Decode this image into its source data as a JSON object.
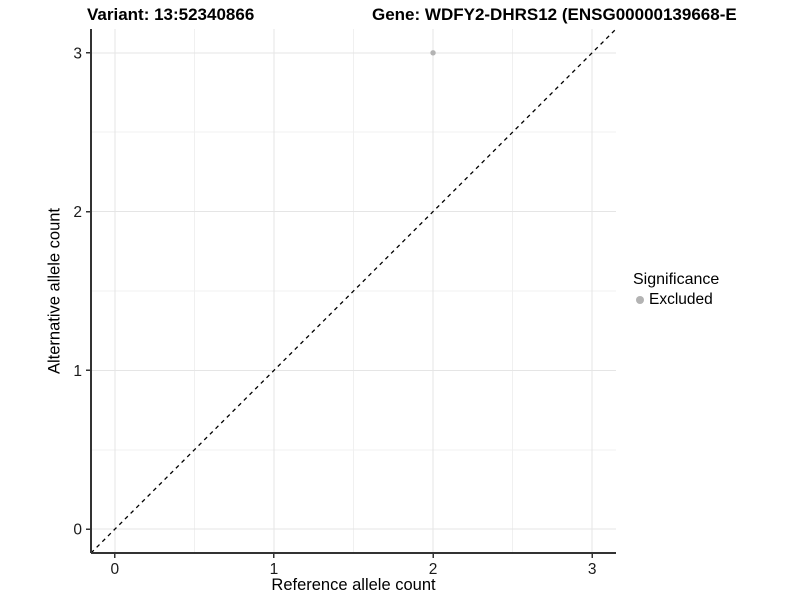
{
  "figure": {
    "titles": {
      "variant": "Variant: 13:52340866",
      "gene": "Gene: WDFY2-DHRS12 (ENSG00000139668-E"
    },
    "colors": {
      "background": "#ffffff",
      "text": "#000000",
      "tick_text": "#1a1a1a",
      "axis_line": "#333333",
      "grid_major": "#e5e5e5",
      "grid_minor": "#f0f0f0",
      "point": "#b3b3b3",
      "reference_line": "#000000"
    }
  },
  "chart_data": {
    "type": "scatter",
    "title": "",
    "xlabel": "Reference allele count",
    "ylabel": "Alternative allele count",
    "xlim": [
      -0.15,
      3.15
    ],
    "ylim": [
      -0.15,
      3.15
    ],
    "x_ticks": [
      0,
      1,
      2,
      3
    ],
    "y_ticks": [
      0,
      1,
      2,
      3
    ],
    "grid": "major+minor",
    "reference_line": {
      "type": "identity y=x",
      "style": "dashed",
      "color": "#000000"
    },
    "series": [
      {
        "name": "Excluded",
        "color": "#b3b3b3",
        "points": [
          {
            "x": 2,
            "y": 3
          }
        ]
      }
    ],
    "legend": {
      "title": "Significance",
      "position": "right",
      "items": [
        {
          "label": "Excluded",
          "color": "#b3b3b3"
        }
      ]
    }
  }
}
